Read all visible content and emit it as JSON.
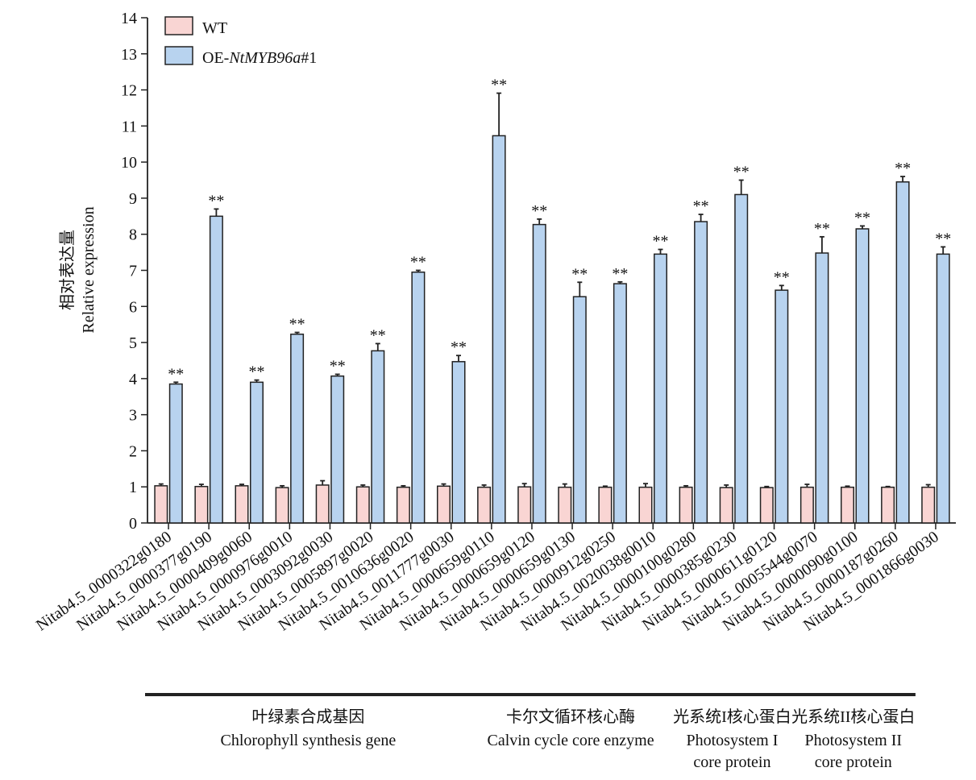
{
  "chart_data": {
    "type": "bar",
    "ylabel_cn": "相对表达量",
    "ylabel": "Relative expression",
    "ylim": [
      0,
      14
    ],
    "yticks": [
      0,
      1,
      2,
      3,
      4,
      5,
      6,
      7,
      8,
      9,
      10,
      11,
      12,
      13,
      14
    ],
    "categories": [
      "Nitab4.5_0000322g0180",
      "Nitab4.5_0000377g0190",
      "Nitab4.5_0000409g0060",
      "Nitab4.5_0000976g0010",
      "Nitab4.5_0003092g0030",
      "Nitab4.5_0005897g0020",
      "Nitab4.5_0010636g0020",
      "Nitab4.5_0011777g0030",
      "Nitab4.5_0000659g0110",
      "Nitab4.5_0000659g0120",
      "Nitab4.5_0000659g0130",
      "Nitab4.5_0000912g0250",
      "Nitab4.5_0020038g0010",
      "Nitab4.5_0000100g0280",
      "Nitab4.5_0000385g0230",
      "Nitab4.5_0000611g0120",
      "Nitab4.5_0005544g0070",
      "Nitab4.5_0000090g0100",
      "Nitab4.5_0000187g0260",
      "Nitab4.5_0001866g0030"
    ],
    "series": [
      {
        "name": "WT",
        "color": "#f9d5d3",
        "values": [
          1.03,
          1.01,
          1.03,
          0.98,
          1.05,
          1.0,
          0.99,
          1.02,
          0.99,
          1.0,
          0.99,
          0.99,
          0.99,
          0.99,
          0.98,
          0.98,
          0.99,
          0.99,
          0.99,
          0.99
        ],
        "errors": [
          0.05,
          0.06,
          0.04,
          0.05,
          0.12,
          0.05,
          0.04,
          0.06,
          0.06,
          0.09,
          0.09,
          0.03,
          0.1,
          0.04,
          0.07,
          0.03,
          0.08,
          0.03,
          0.02,
          0.07
        ]
      },
      {
        "name_prefix": "OE-",
        "name_italic": "NtMYB96a",
        "name_suffix": "#1",
        "color": "#b8d3ef",
        "values": [
          3.85,
          8.5,
          3.9,
          5.23,
          4.07,
          4.77,
          6.95,
          4.47,
          10.73,
          8.27,
          6.27,
          6.63,
          7.45,
          8.35,
          9.1,
          6.45,
          7.48,
          8.15,
          9.45,
          7.45
        ],
        "errors": [
          0.05,
          0.2,
          0.06,
          0.05,
          0.05,
          0.2,
          0.05,
          0.17,
          1.18,
          0.15,
          0.4,
          0.05,
          0.13,
          0.2,
          0.4,
          0.13,
          0.45,
          0.08,
          0.15,
          0.2
        ]
      }
    ],
    "significance": [
      "**",
      "**",
      "**",
      "**",
      "**",
      "**",
      "**",
      "**",
      "**",
      "**",
      "**",
      "**",
      "**",
      "**",
      "**",
      "**",
      "**",
      "**",
      "**",
      "**"
    ],
    "groups": [
      {
        "cn": "叶绿素合成基因",
        "en": [
          "Chlorophyll synthesis gene"
        ],
        "from": 0,
        "to": 7
      },
      {
        "cn": "卡尔文循环核心酶",
        "en": [
          "Calvin cycle core enzyme"
        ],
        "from": 8,
        "to": 12
      },
      {
        "cn": "光系统I核心蛋白",
        "en": [
          "Photosystem I",
          "core protein"
        ],
        "from": 13,
        "to": 15
      },
      {
        "cn": "光系统II核心蛋白",
        "en": [
          "Photosystem II",
          "core protein"
        ],
        "from": 16,
        "to": 18
      }
    ]
  }
}
